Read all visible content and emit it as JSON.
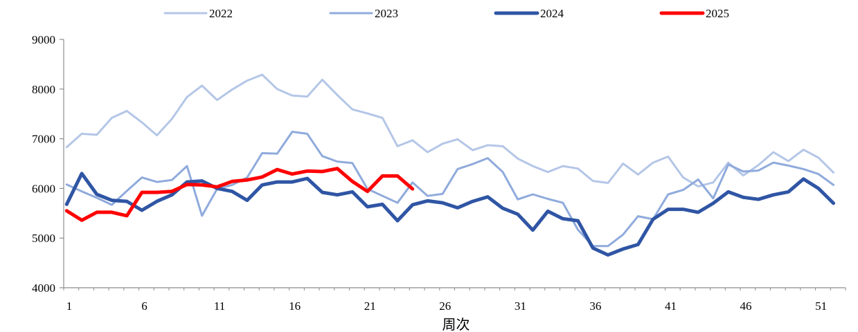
{
  "chart_data": {
    "type": "line",
    "title": "",
    "xlabel": "周次",
    "ylabel": "",
    "xlim": [
      1,
      53
    ],
    "ylim": [
      4000,
      9000
    ],
    "yticks": [
      4000,
      5000,
      6000,
      7000,
      8000,
      9000
    ],
    "xticks": [
      1,
      6,
      11,
      16,
      21,
      26,
      31,
      36,
      41,
      46,
      51
    ],
    "grid": false,
    "legend_position": "top",
    "series": [
      {
        "name": "2022",
        "color": "#b4c6e7",
        "width": 3,
        "x": [
          1,
          2,
          3,
          4,
          5,
          6,
          7,
          8,
          9,
          10,
          11,
          12,
          13,
          14,
          15,
          16,
          17,
          18,
          19,
          20,
          21,
          22,
          23,
          24,
          25,
          26,
          27,
          28,
          29,
          30,
          31,
          32,
          33,
          34,
          35,
          36,
          37,
          38,
          39,
          40,
          41,
          42,
          43,
          44,
          45,
          46,
          47,
          48,
          49,
          50,
          51,
          52
        ],
        "values": [
          6830,
          7100,
          7080,
          7420,
          7560,
          7330,
          7070,
          7400,
          7840,
          8070,
          7780,
          7990,
          8170,
          8290,
          8000,
          7870,
          7850,
          8190,
          7880,
          7590,
          7510,
          7420,
          6850,
          6970,
          6730,
          6900,
          6990,
          6770,
          6870,
          6850,
          6600,
          6450,
          6330,
          6450,
          6400,
          6150,
          6110,
          6500,
          6280,
          6520,
          6640,
          6220,
          6040,
          6120,
          6520,
          6260,
          6470,
          6730,
          6550,
          6780,
          6620,
          6320
        ]
      },
      {
        "name": "2023",
        "color": "#8faadc",
        "width": 3,
        "x": [
          1,
          2,
          3,
          4,
          5,
          6,
          7,
          8,
          9,
          10,
          11,
          12,
          13,
          14,
          15,
          16,
          17,
          18,
          19,
          20,
          21,
          22,
          23,
          24,
          25,
          26,
          27,
          28,
          29,
          30,
          31,
          32,
          33,
          34,
          35,
          36,
          37,
          38,
          39,
          40,
          41,
          42,
          43,
          44,
          45,
          46,
          47,
          48,
          49,
          50,
          51,
          52
        ],
        "values": [
          6080,
          5940,
          5810,
          5670,
          5950,
          6220,
          6130,
          6170,
          6450,
          5450,
          5990,
          6070,
          6220,
          6710,
          6700,
          7140,
          7100,
          6650,
          6540,
          6510,
          5990,
          5850,
          5710,
          6120,
          5850,
          5890,
          6390,
          6490,
          6610,
          6330,
          5780,
          5880,
          5790,
          5710,
          5170,
          4840,
          4840,
          5070,
          5440,
          5380,
          5880,
          5970,
          6180,
          5800,
          6480,
          6340,
          6360,
          6520,
          6460,
          6390,
          6290,
          6070
        ]
      },
      {
        "name": "2024",
        "color": "#2f55a4",
        "width": 5,
        "x": [
          1,
          2,
          3,
          4,
          5,
          6,
          7,
          8,
          9,
          10,
          11,
          12,
          13,
          14,
          15,
          16,
          17,
          18,
          19,
          20,
          21,
          22,
          23,
          24,
          25,
          26,
          27,
          28,
          29,
          30,
          31,
          32,
          33,
          34,
          35,
          36,
          37,
          38,
          39,
          40,
          41,
          42,
          43,
          44,
          45,
          46,
          47,
          48,
          49,
          50,
          51,
          52
        ],
        "values": [
          5680,
          6300,
          5880,
          5760,
          5740,
          5560,
          5740,
          5870,
          6130,
          6150,
          6000,
          5940,
          5760,
          6070,
          6130,
          6130,
          6200,
          5920,
          5870,
          5930,
          5630,
          5680,
          5350,
          5670,
          5750,
          5710,
          5610,
          5740,
          5830,
          5600,
          5480,
          5160,
          5540,
          5390,
          5350,
          4800,
          4660,
          4780,
          4870,
          5380,
          5580,
          5580,
          5520,
          5700,
          5930,
          5820,
          5780,
          5870,
          5930,
          6190,
          6000,
          5700
        ]
      },
      {
        "name": "2025",
        "color": "#ff0000",
        "width": 5,
        "x": [
          1,
          2,
          3,
          4,
          5,
          6,
          7,
          8,
          9,
          10,
          11,
          12,
          13,
          14,
          15,
          16,
          17,
          18,
          19,
          20,
          21,
          22,
          23,
          24
        ],
        "values": [
          5550,
          5360,
          5520,
          5520,
          5450,
          5920,
          5920,
          5940,
          6080,
          6070,
          6030,
          6140,
          6170,
          6230,
          6380,
          6290,
          6350,
          6340,
          6400,
          6140,
          5940,
          6250,
          6250,
          5990
        ]
      }
    ]
  }
}
